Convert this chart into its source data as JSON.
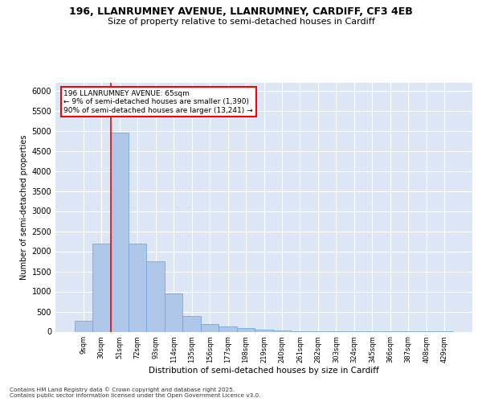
{
  "title_line1": "196, LLANRUMNEY AVENUE, LLANRUMNEY, CARDIFF, CF3 4EB",
  "title_line2": "Size of property relative to semi-detached houses in Cardiff",
  "xlabel": "Distribution of semi-detached houses by size in Cardiff",
  "ylabel": "Number of semi-detached properties",
  "categories": [
    "9sqm",
    "30sqm",
    "51sqm",
    "72sqm",
    "93sqm",
    "114sqm",
    "135sqm",
    "156sqm",
    "177sqm",
    "198sqm",
    "219sqm",
    "240sqm",
    "261sqm",
    "282sqm",
    "303sqm",
    "324sqm",
    "345sqm",
    "366sqm",
    "387sqm",
    "408sqm",
    "429sqm"
  ],
  "values": [
    270,
    2200,
    4950,
    2200,
    1750,
    950,
    400,
    200,
    130,
    100,
    60,
    35,
    20,
    15,
    10,
    8,
    5,
    4,
    3,
    2,
    2
  ],
  "bar_color": "#aec6e8",
  "bar_edge_color": "#6a9fd8",
  "vline_color": "red",
  "annotation_text": "196 LLANRUMNEY AVENUE: 65sqm\n← 9% of semi-detached houses are smaller (1,390)\n90% of semi-detached houses are larger (13,241) →",
  "ylim": [
    0,
    6200
  ],
  "yticks": [
    0,
    500,
    1000,
    1500,
    2000,
    2500,
    3000,
    3500,
    4000,
    4500,
    5000,
    5500,
    6000
  ],
  "background_color": "#dce6f5",
  "grid_color": "white",
  "footer_line1": "Contains HM Land Registry data © Crown copyright and database right 2025.",
  "footer_line2": "Contains public sector information licensed under the Open Government Licence v3.0."
}
